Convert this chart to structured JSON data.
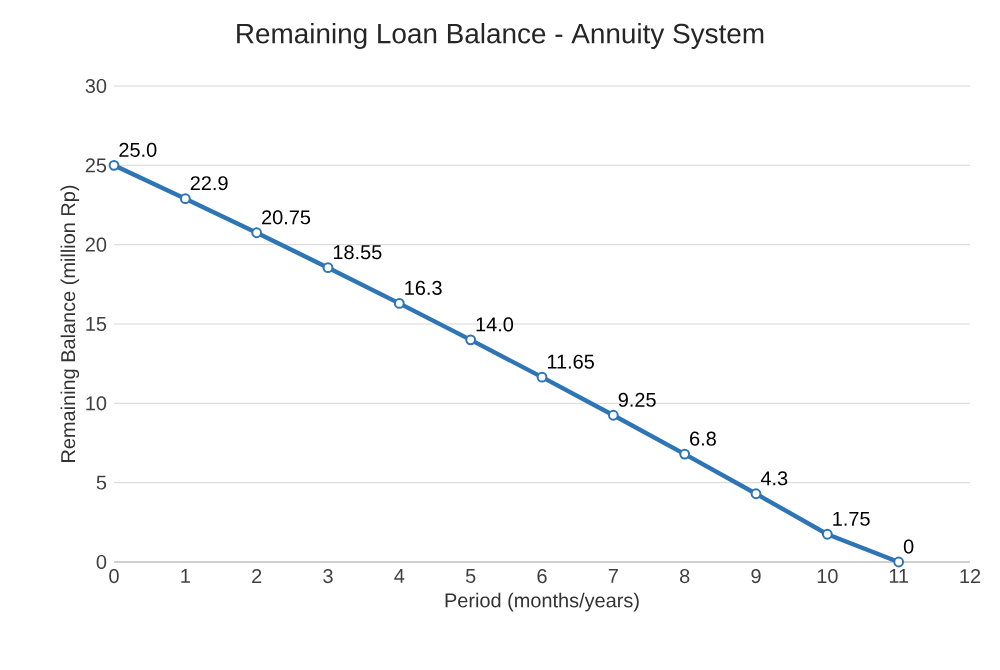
{
  "chart_data": {
    "type": "line",
    "title": "Remaining Loan Balance - Annuity System",
    "xlabel": "Period (months/years)",
    "ylabel": "Remaining Balance (million Rp)",
    "x": [
      0,
      1,
      2,
      3,
      4,
      5,
      6,
      7,
      8,
      9,
      10,
      11
    ],
    "series": [
      {
        "color": "#2e75b6",
        "values": [
          25.0,
          22.9,
          20.75,
          18.55,
          16.3,
          14.0,
          11.65,
          9.25,
          6.8,
          4.3,
          1.75,
          0
        ],
        "value_labels": [
          "25.0",
          "22.9",
          "20.75",
          "18.55",
          "16.3",
          "14.0",
          "11.65",
          "9.25",
          "6.8",
          "4.3",
          "1.75",
          "0"
        ]
      }
    ],
    "xlim": [
      0,
      12
    ],
    "xticks": [
      0,
      1,
      2,
      3,
      4,
      5,
      6,
      7,
      8,
      9,
      10,
      11,
      12
    ],
    "ylim": [
      0,
      30
    ],
    "yticks": [
      0,
      5,
      10,
      15,
      20,
      25,
      30
    ],
    "grid": "y",
    "marker": "circle",
    "line_style": "solid"
  }
}
